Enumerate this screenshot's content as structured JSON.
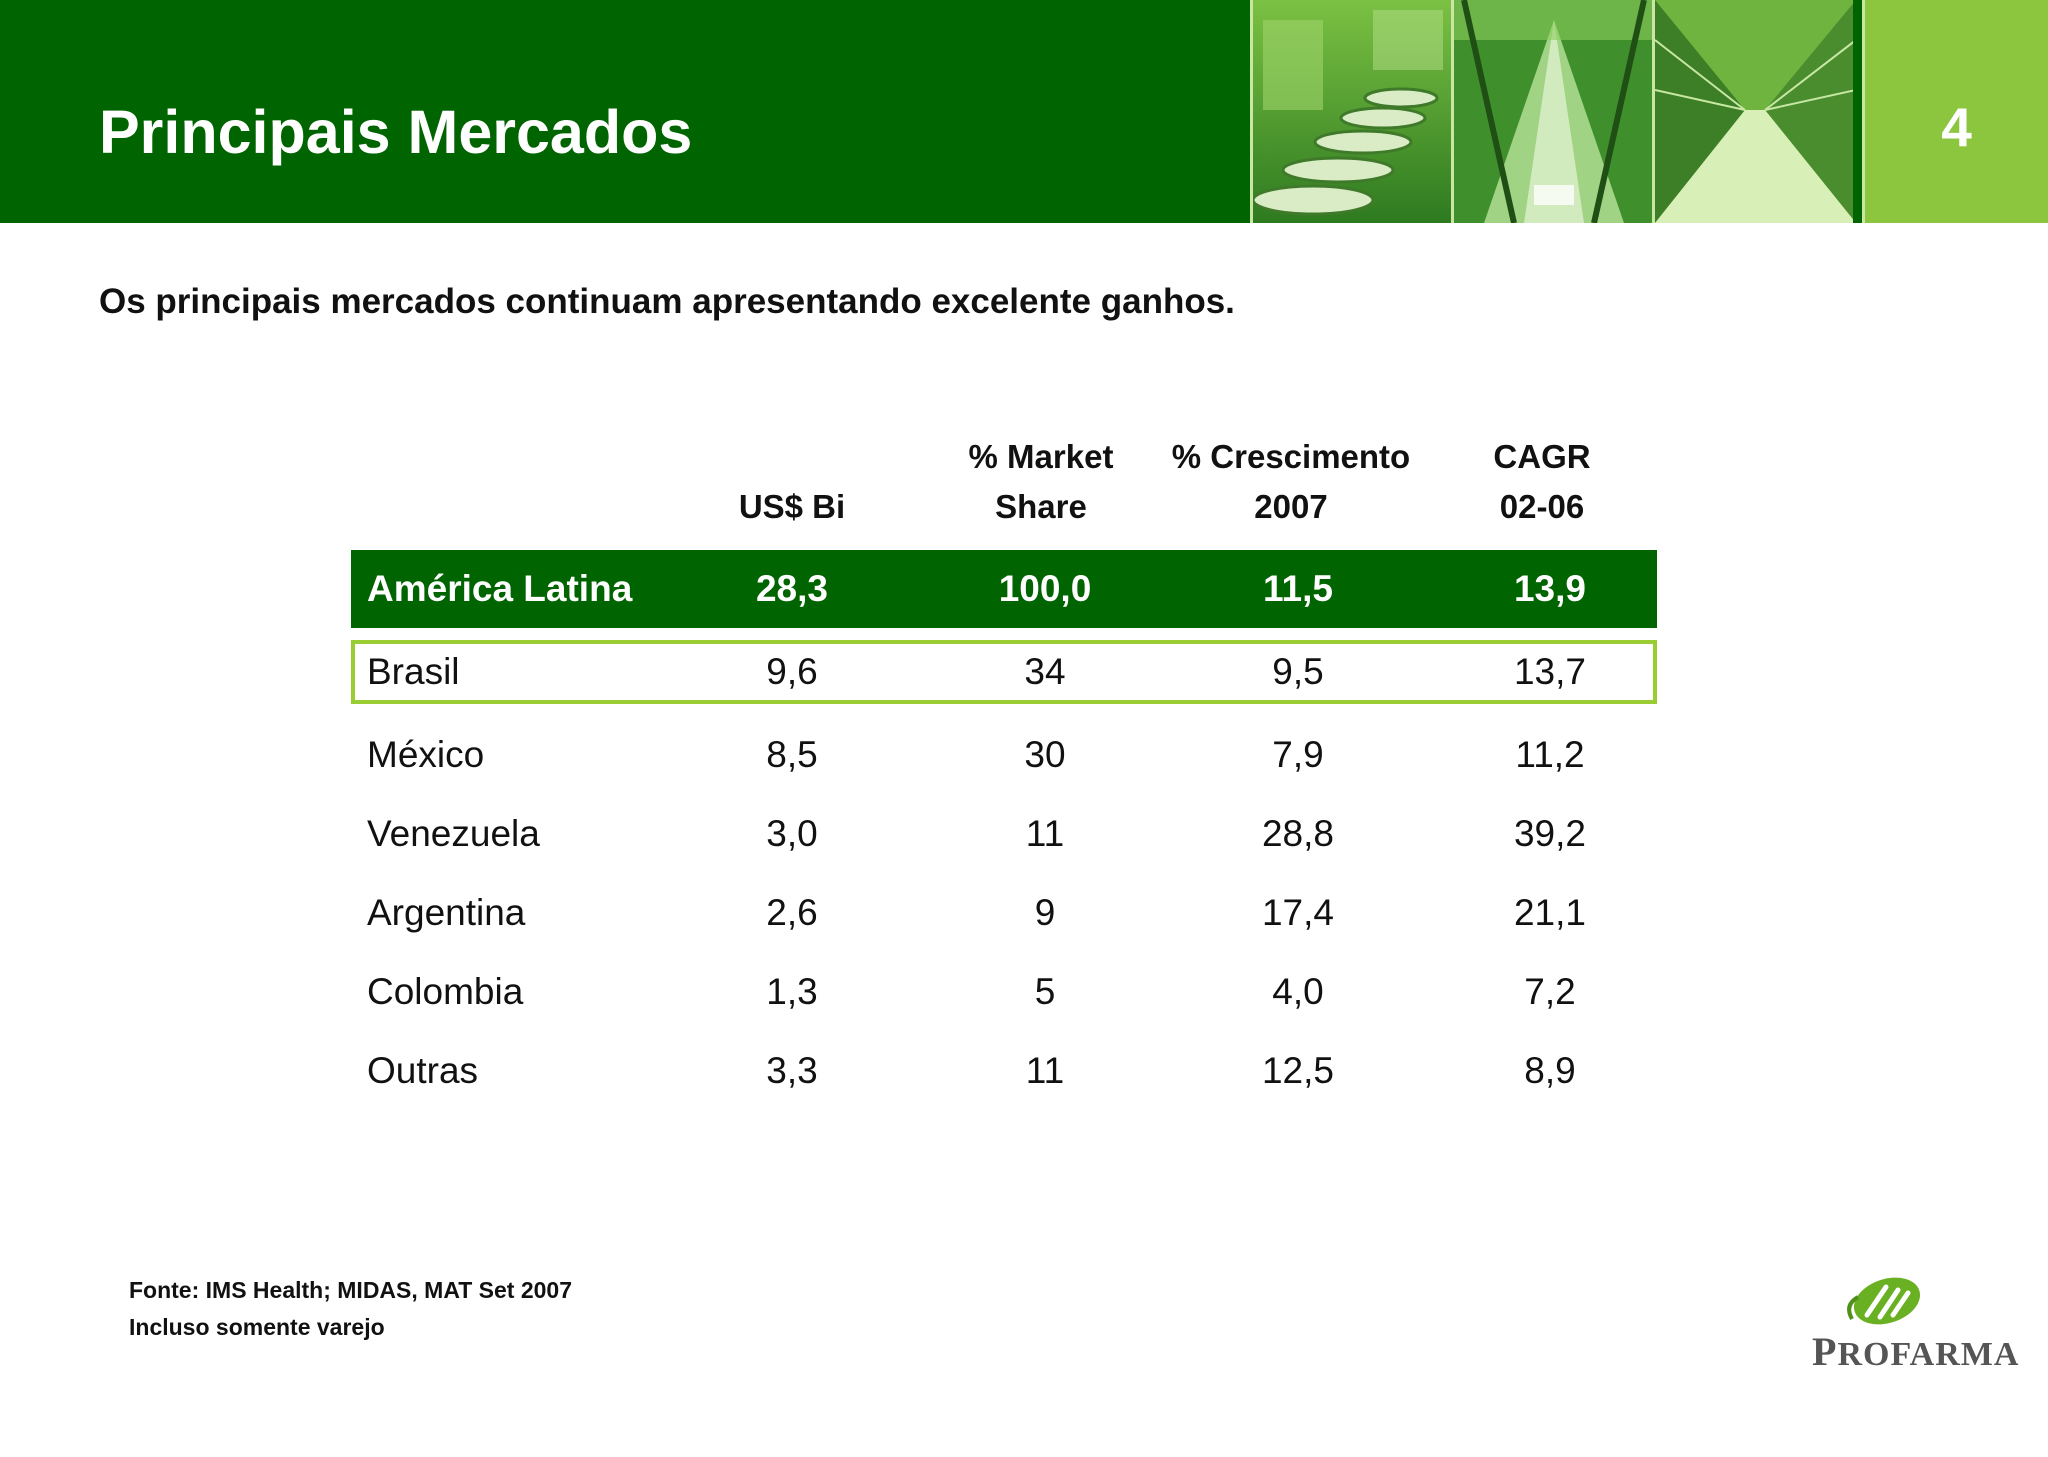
{
  "header": {
    "title": "Principais Mercados",
    "page_number": "4"
  },
  "subtitle": "Os principais mercados continuam apresentando excelente ganhos.",
  "table": {
    "columns": [
      {
        "line1": "",
        "line2": "US$ Bi"
      },
      {
        "line1": "% Market",
        "line2": "Share"
      },
      {
        "line1": "% Crescimento",
        "line2": "2007"
      },
      {
        "line1": "CAGR",
        "line2": "02-06"
      }
    ],
    "rows": [
      {
        "name": "América Latina",
        "values": [
          "28,3",
          "100,0",
          "11,5",
          "13,9"
        ]
      },
      {
        "name": "Brasil",
        "values": [
          "9,6",
          "34",
          "9,5",
          "13,7"
        ]
      },
      {
        "name": "México",
        "values": [
          "8,5",
          "30",
          "7,9",
          "11,2"
        ]
      },
      {
        "name": "Venezuela",
        "values": [
          "3,0",
          "11",
          "28,8",
          "39,2"
        ]
      },
      {
        "name": "Argentina",
        "values": [
          "2,6",
          "9",
          "17,4",
          "21,1"
        ]
      },
      {
        "name": "Colombia",
        "values": [
          "1,3",
          "5",
          "4,0",
          "7,2"
        ]
      },
      {
        "name": "Outras",
        "values": [
          "3,3",
          "11",
          "12,5",
          "8,9"
        ]
      }
    ]
  },
  "footnote": {
    "line1": "Fonte: IMS Health; MIDAS, MAT Set 2007",
    "line2": "Incluso somente varejo"
  },
  "logo": {
    "first_letter": "P",
    "rest": "ROFARMA"
  },
  "colors": {
    "header_green": "#006400",
    "accent_light_green": "#8cc63f",
    "highlight_border": "#9acd32"
  },
  "icons": [
    "conveyor-photo",
    "factory-photo",
    "warehouse-photo",
    "profarma-logo-mark"
  ]
}
